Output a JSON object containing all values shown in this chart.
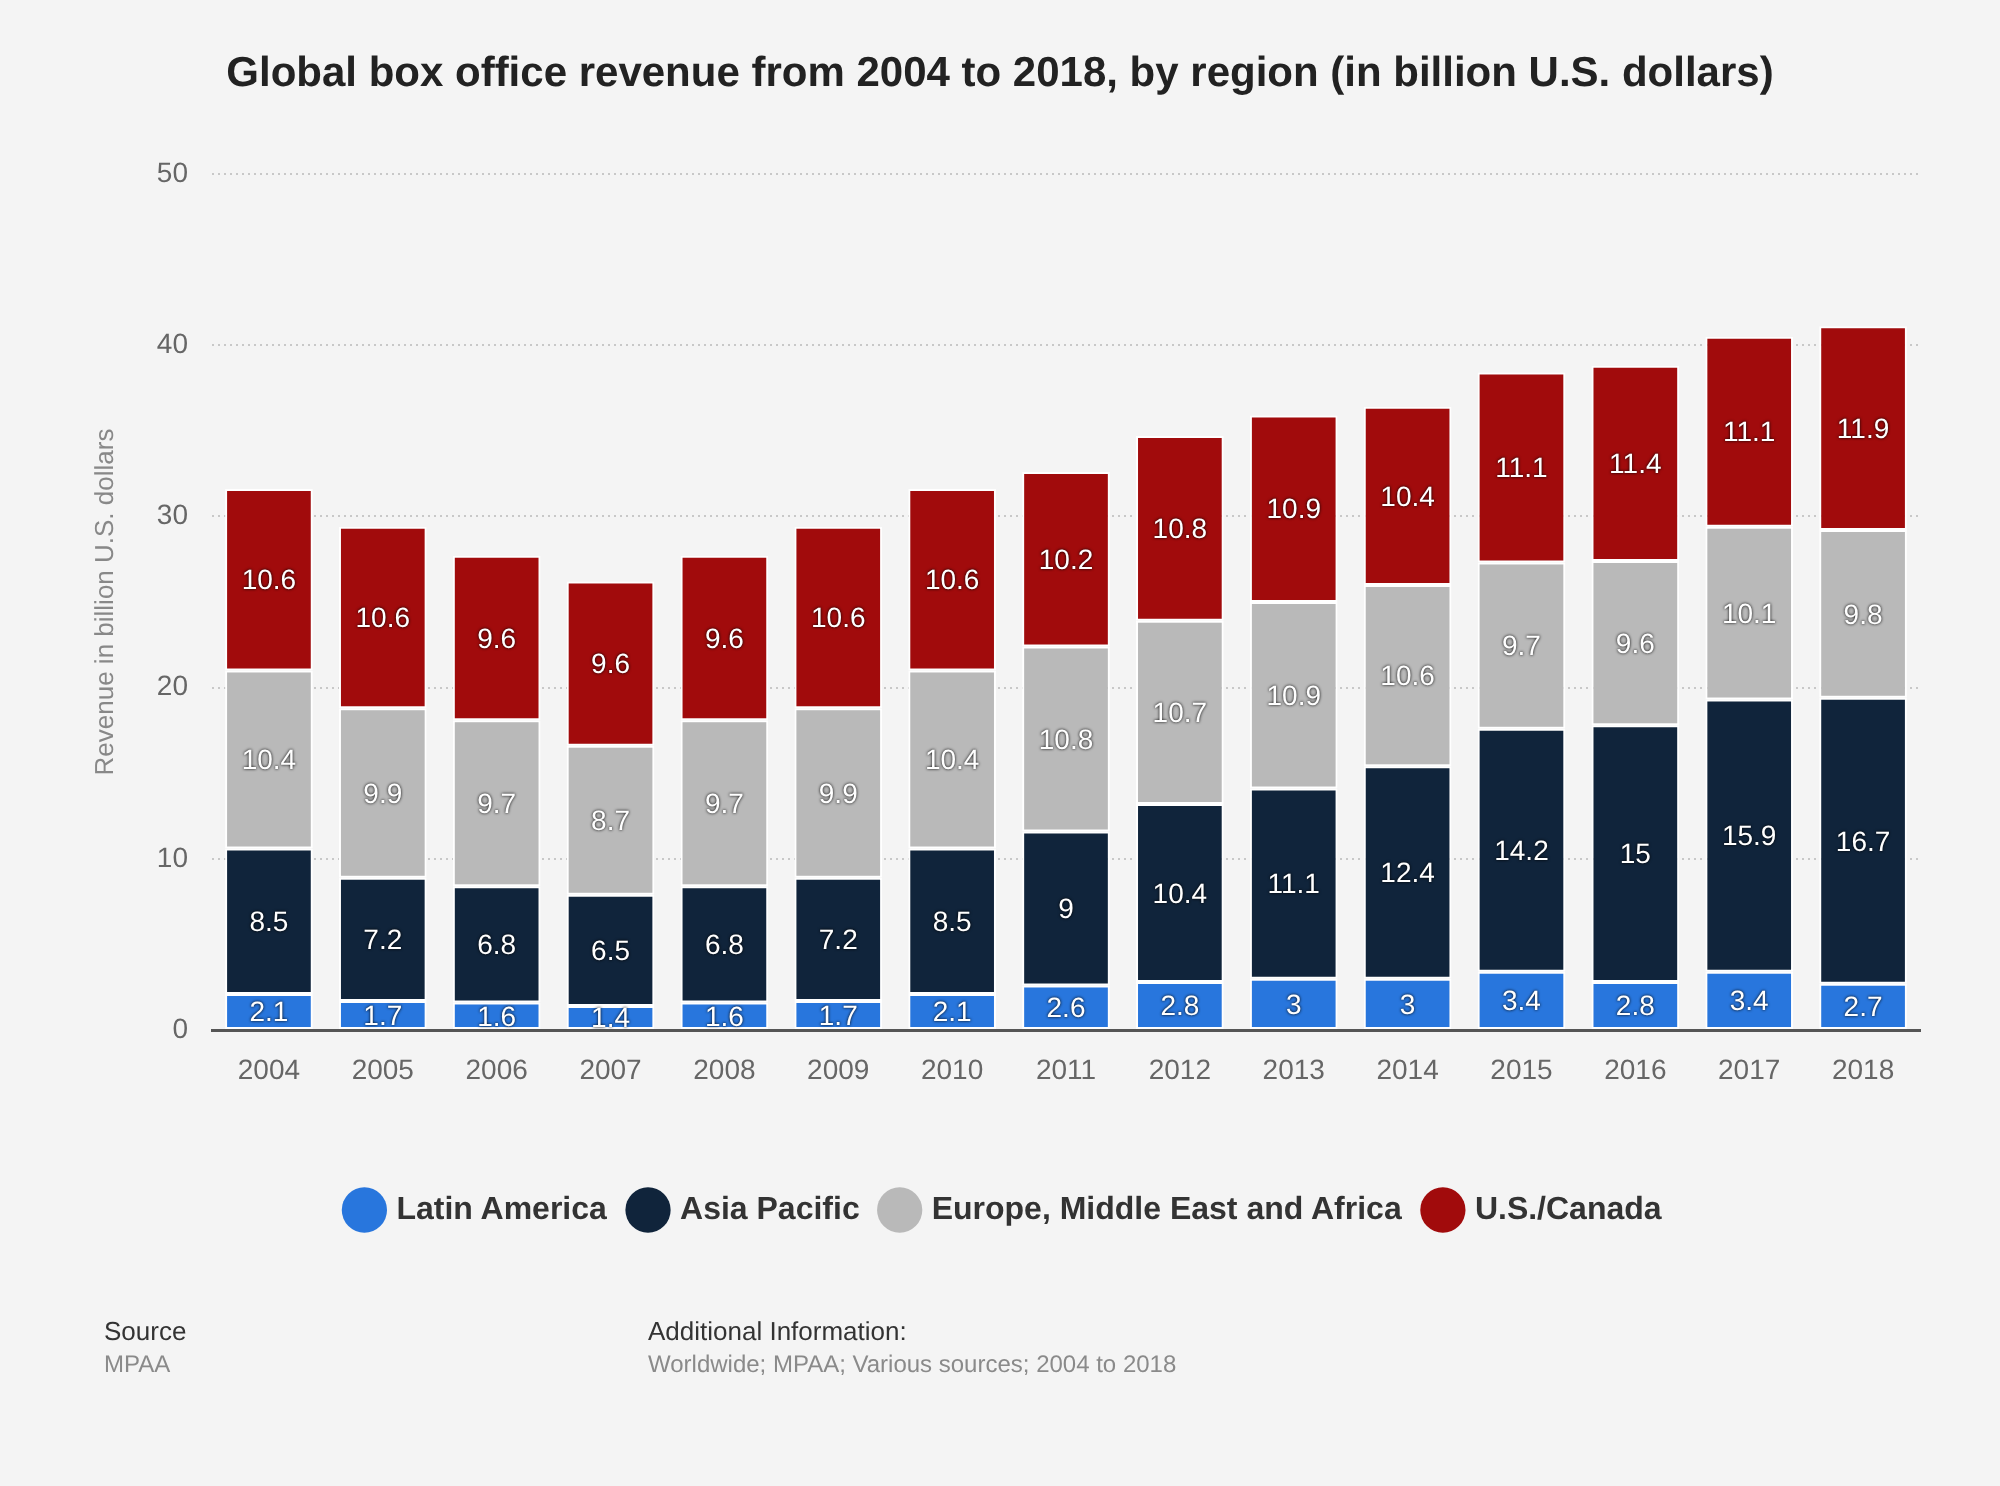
{
  "chart_data": {
    "type": "bar",
    "title": "Global box office revenue from 2004 to 2018, by region (in billion U.S. dollars)",
    "ylabel": "Revenue in billion U.S. dollars",
    "categories": [
      "2004",
      "2005",
      "2006",
      "2007",
      "2008",
      "2009",
      "2010",
      "2011",
      "2012",
      "2013",
      "2014",
      "2015",
      "2016",
      "2017",
      "2018"
    ],
    "stacked": true,
    "series": [
      {
        "name": "Latin America",
        "color": "#2876dd",
        "values": [
          2.1,
          1.7,
          1.6,
          1.4,
          1.6,
          1.7,
          2.1,
          2.6,
          2.8,
          3,
          3,
          3.4,
          2.8,
          3.4,
          2.7
        ]
      },
      {
        "name": "Asia Pacific",
        "color": "#10243b",
        "values": [
          8.5,
          7.2,
          6.8,
          6.5,
          6.8,
          7.2,
          8.5,
          9,
          10.4,
          11.1,
          12.4,
          14.2,
          15,
          15.9,
          16.7
        ]
      },
      {
        "name": "Europe, Middle East and Africa",
        "color": "#b9b9b9",
        "values": [
          10.4,
          9.9,
          9.7,
          8.7,
          9.7,
          9.9,
          10.4,
          10.8,
          10.7,
          10.9,
          10.6,
          9.7,
          9.6,
          10.1,
          9.8
        ]
      },
      {
        "name": "U.S./Canada",
        "color": "#a10b0c",
        "values": [
          10.6,
          10.6,
          9.6,
          9.6,
          9.6,
          10.6,
          10.6,
          10.2,
          10.8,
          10.9,
          10.4,
          11.1,
          11.4,
          11.1,
          11.9
        ]
      }
    ],
    "ylim": [
      0,
      50
    ],
    "yticks": [
      0,
      10,
      20,
      30,
      40,
      50
    ],
    "grid": "y",
    "legend": "bottom",
    "data_labels": true,
    "annotations": [
      "Source",
      "MPAA",
      "Additional Information:",
      "Worldwide; MPAA; Various sources; 2004 to 2018"
    ]
  }
}
